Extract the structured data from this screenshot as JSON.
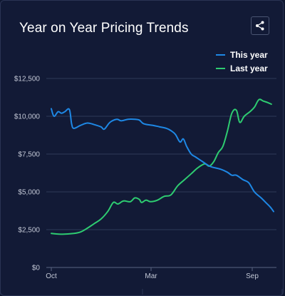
{
  "header": {
    "title": "Year on Year Pricing Trends",
    "share_icon": "share-icon"
  },
  "legend": [
    {
      "label": "This year",
      "color": "#1e88e5"
    },
    {
      "label": "Last year",
      "color": "#2ecc71"
    }
  ],
  "chart_data": {
    "type": "line",
    "title": "Year on Year Pricing Trends",
    "xlabel": "",
    "ylabel": "",
    "x_ticks": [
      "Oct",
      "Mar",
      "Sep"
    ],
    "y_ticks": [
      "$12,500",
      "$10,000",
      "$7,500",
      "$5,000",
      "$2,500",
      "$0"
    ],
    "ylim": [
      0,
      12500
    ],
    "grid": true,
    "legend_position": "top-right",
    "x_range": [
      0,
      12
    ],
    "series": [
      {
        "name": "This year",
        "color": "#1e88e5",
        "points": [
          [
            0.0,
            10500
          ],
          [
            0.12,
            10000
          ],
          [
            0.3,
            10300
          ],
          [
            0.45,
            10200
          ],
          [
            0.6,
            10300
          ],
          [
            0.8,
            10450
          ],
          [
            0.9,
            9500
          ],
          [
            1.0,
            9200
          ],
          [
            1.3,
            9400
          ],
          [
            1.6,
            9550
          ],
          [
            1.9,
            9450
          ],
          [
            2.2,
            9300
          ],
          [
            2.35,
            9150
          ],
          [
            2.6,
            9600
          ],
          [
            2.9,
            9800
          ],
          [
            3.1,
            9700
          ],
          [
            3.4,
            9800
          ],
          [
            3.7,
            9800
          ],
          [
            3.9,
            9750
          ],
          [
            4.1,
            9500
          ],
          [
            4.5,
            9400
          ],
          [
            4.8,
            9300
          ],
          [
            5.1,
            9200
          ],
          [
            5.3,
            9050
          ],
          [
            5.5,
            8800
          ],
          [
            5.7,
            8300
          ],
          [
            5.85,
            8500
          ],
          [
            6.0,
            8000
          ],
          [
            6.2,
            7500
          ],
          [
            6.4,
            7300
          ],
          [
            6.7,
            7000
          ],
          [
            6.9,
            6800
          ],
          [
            7.1,
            6650
          ],
          [
            7.5,
            6500
          ],
          [
            7.8,
            6300
          ],
          [
            8.0,
            6100
          ],
          [
            8.2,
            6100
          ],
          [
            8.5,
            5800
          ],
          [
            8.75,
            5600
          ],
          [
            9.0,
            5000
          ],
          [
            9.3,
            4600
          ],
          [
            9.5,
            4300
          ],
          [
            9.7,
            4000
          ],
          [
            9.85,
            3700
          ]
        ]
      },
      {
        "name": "Last year",
        "color": "#2ecc71",
        "points": [
          [
            0.0,
            2250
          ],
          [
            0.5,
            2200
          ],
          [
            1.0,
            2250
          ],
          [
            1.3,
            2350
          ],
          [
            1.6,
            2600
          ],
          [
            1.9,
            2900
          ],
          [
            2.2,
            3200
          ],
          [
            2.5,
            3700
          ],
          [
            2.75,
            4300
          ],
          [
            2.95,
            4200
          ],
          [
            3.2,
            4400
          ],
          [
            3.5,
            4350
          ],
          [
            3.7,
            4600
          ],
          [
            3.9,
            4500
          ],
          [
            4.0,
            4300
          ],
          [
            4.2,
            4450
          ],
          [
            4.4,
            4350
          ],
          [
            4.7,
            4450
          ],
          [
            5.0,
            4700
          ],
          [
            5.3,
            4800
          ],
          [
            5.6,
            5400
          ],
          [
            5.9,
            5800
          ],
          [
            6.2,
            6200
          ],
          [
            6.5,
            6600
          ],
          [
            6.8,
            6850
          ],
          [
            7.0,
            6700
          ],
          [
            7.2,
            7000
          ],
          [
            7.4,
            7600
          ],
          [
            7.6,
            8000
          ],
          [
            7.8,
            9000
          ],
          [
            8.0,
            10200
          ],
          [
            8.2,
            10400
          ],
          [
            8.35,
            9600
          ],
          [
            8.55,
            10000
          ],
          [
            8.8,
            10300
          ],
          [
            9.0,
            10600
          ],
          [
            9.2,
            11100
          ],
          [
            9.4,
            11000
          ],
          [
            9.6,
            10900
          ],
          [
            9.75,
            10800
          ]
        ]
      }
    ]
  }
}
